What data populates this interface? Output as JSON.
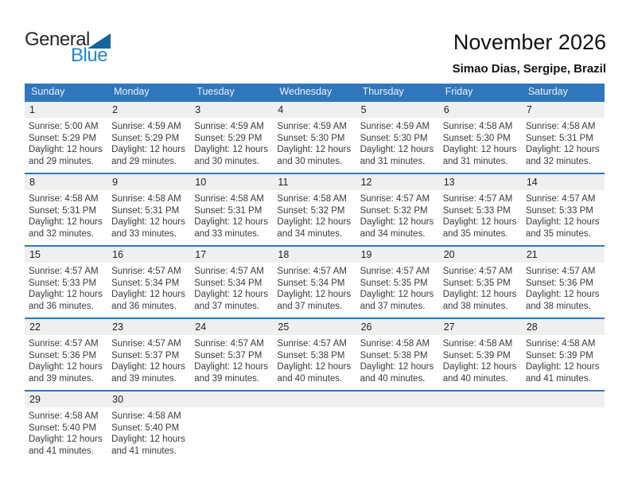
{
  "logo": {
    "text_top": "General",
    "text_bottom": "Blue"
  },
  "title": "November 2026",
  "subtitle": "Simao Dias, Sergipe, Brazil",
  "weekday_headers": [
    "Sunday",
    "Monday",
    "Tuesday",
    "Wednesday",
    "Thursday",
    "Friday",
    "Saturday"
  ],
  "colors": {
    "header_blue": "#2f76bc",
    "week_divider_blue": "#2f76bc",
    "day_band_gray": "#efefef",
    "logo_triangle_blue": "#15659f",
    "logo_blue_text": "#2089ce",
    "body_text": "#3a3a3a"
  },
  "weeks": [
    [
      {
        "day": "1",
        "sunrise": "Sunrise: 5:00 AM",
        "sunset": "Sunset: 5:29 PM",
        "daylight": "Daylight: 12 hours and 29 minutes."
      },
      {
        "day": "2",
        "sunrise": "Sunrise: 4:59 AM",
        "sunset": "Sunset: 5:29 PM",
        "daylight": "Daylight: 12 hours and 29 minutes."
      },
      {
        "day": "3",
        "sunrise": "Sunrise: 4:59 AM",
        "sunset": "Sunset: 5:29 PM",
        "daylight": "Daylight: 12 hours and 30 minutes."
      },
      {
        "day": "4",
        "sunrise": "Sunrise: 4:59 AM",
        "sunset": "Sunset: 5:30 PM",
        "daylight": "Daylight: 12 hours and 30 minutes."
      },
      {
        "day": "5",
        "sunrise": "Sunrise: 4:59 AM",
        "sunset": "Sunset: 5:30 PM",
        "daylight": "Daylight: 12 hours and 31 minutes."
      },
      {
        "day": "6",
        "sunrise": "Sunrise: 4:58 AM",
        "sunset": "Sunset: 5:30 PM",
        "daylight": "Daylight: 12 hours and 31 minutes."
      },
      {
        "day": "7",
        "sunrise": "Sunrise: 4:58 AM",
        "sunset": "Sunset: 5:31 PM",
        "daylight": "Daylight: 12 hours and 32 minutes."
      }
    ],
    [
      {
        "day": "8",
        "sunrise": "Sunrise: 4:58 AM",
        "sunset": "Sunset: 5:31 PM",
        "daylight": "Daylight: 12 hours and 32 minutes."
      },
      {
        "day": "9",
        "sunrise": "Sunrise: 4:58 AM",
        "sunset": "Sunset: 5:31 PM",
        "daylight": "Daylight: 12 hours and 33 minutes."
      },
      {
        "day": "10",
        "sunrise": "Sunrise: 4:58 AM",
        "sunset": "Sunset: 5:31 PM",
        "daylight": "Daylight: 12 hours and 33 minutes."
      },
      {
        "day": "11",
        "sunrise": "Sunrise: 4:58 AM",
        "sunset": "Sunset: 5:32 PM",
        "daylight": "Daylight: 12 hours and 34 minutes."
      },
      {
        "day": "12",
        "sunrise": "Sunrise: 4:57 AM",
        "sunset": "Sunset: 5:32 PM",
        "daylight": "Daylight: 12 hours and 34 minutes."
      },
      {
        "day": "13",
        "sunrise": "Sunrise: 4:57 AM",
        "sunset": "Sunset: 5:33 PM",
        "daylight": "Daylight: 12 hours and 35 minutes."
      },
      {
        "day": "14",
        "sunrise": "Sunrise: 4:57 AM",
        "sunset": "Sunset: 5:33 PM",
        "daylight": "Daylight: 12 hours and 35 minutes."
      }
    ],
    [
      {
        "day": "15",
        "sunrise": "Sunrise: 4:57 AM",
        "sunset": "Sunset: 5:33 PM",
        "daylight": "Daylight: 12 hours and 36 minutes."
      },
      {
        "day": "16",
        "sunrise": "Sunrise: 4:57 AM",
        "sunset": "Sunset: 5:34 PM",
        "daylight": "Daylight: 12 hours and 36 minutes."
      },
      {
        "day": "17",
        "sunrise": "Sunrise: 4:57 AM",
        "sunset": "Sunset: 5:34 PM",
        "daylight": "Daylight: 12 hours and 37 minutes."
      },
      {
        "day": "18",
        "sunrise": "Sunrise: 4:57 AM",
        "sunset": "Sunset: 5:34 PM",
        "daylight": "Daylight: 12 hours and 37 minutes."
      },
      {
        "day": "19",
        "sunrise": "Sunrise: 4:57 AM",
        "sunset": "Sunset: 5:35 PM",
        "daylight": "Daylight: 12 hours and 37 minutes."
      },
      {
        "day": "20",
        "sunrise": "Sunrise: 4:57 AM",
        "sunset": "Sunset: 5:35 PM",
        "daylight": "Daylight: 12 hours and 38 minutes."
      },
      {
        "day": "21",
        "sunrise": "Sunrise: 4:57 AM",
        "sunset": "Sunset: 5:36 PM",
        "daylight": "Daylight: 12 hours and 38 minutes."
      }
    ],
    [
      {
        "day": "22",
        "sunrise": "Sunrise: 4:57 AM",
        "sunset": "Sunset: 5:36 PM",
        "daylight": "Daylight: 12 hours and 39 minutes."
      },
      {
        "day": "23",
        "sunrise": "Sunrise: 4:57 AM",
        "sunset": "Sunset: 5:37 PM",
        "daylight": "Daylight: 12 hours and 39 minutes."
      },
      {
        "day": "24",
        "sunrise": "Sunrise: 4:57 AM",
        "sunset": "Sunset: 5:37 PM",
        "daylight": "Daylight: 12 hours and 39 minutes."
      },
      {
        "day": "25",
        "sunrise": "Sunrise: 4:57 AM",
        "sunset": "Sunset: 5:38 PM",
        "daylight": "Daylight: 12 hours and 40 minutes."
      },
      {
        "day": "26",
        "sunrise": "Sunrise: 4:58 AM",
        "sunset": "Sunset: 5:38 PM",
        "daylight": "Daylight: 12 hours and 40 minutes."
      },
      {
        "day": "27",
        "sunrise": "Sunrise: 4:58 AM",
        "sunset": "Sunset: 5:39 PM",
        "daylight": "Daylight: 12 hours and 40 minutes."
      },
      {
        "day": "28",
        "sunrise": "Sunrise: 4:58 AM",
        "sunset": "Sunset: 5:39 PM",
        "daylight": "Daylight: 12 hours and 41 minutes."
      }
    ],
    [
      {
        "day": "29",
        "sunrise": "Sunrise: 4:58 AM",
        "sunset": "Sunset: 5:40 PM",
        "daylight": "Daylight: 12 hours and 41 minutes."
      },
      {
        "day": "30",
        "sunrise": "Sunrise: 4:58 AM",
        "sunset": "Sunset: 5:40 PM",
        "daylight": "Daylight: 12 hours and 41 minutes."
      },
      {
        "day": "",
        "sunrise": "",
        "sunset": "",
        "daylight": ""
      },
      {
        "day": "",
        "sunrise": "",
        "sunset": "",
        "daylight": ""
      },
      {
        "day": "",
        "sunrise": "",
        "sunset": "",
        "daylight": ""
      },
      {
        "day": "",
        "sunrise": "",
        "sunset": "",
        "daylight": ""
      },
      {
        "day": "",
        "sunrise": "",
        "sunset": "",
        "daylight": ""
      }
    ]
  ]
}
